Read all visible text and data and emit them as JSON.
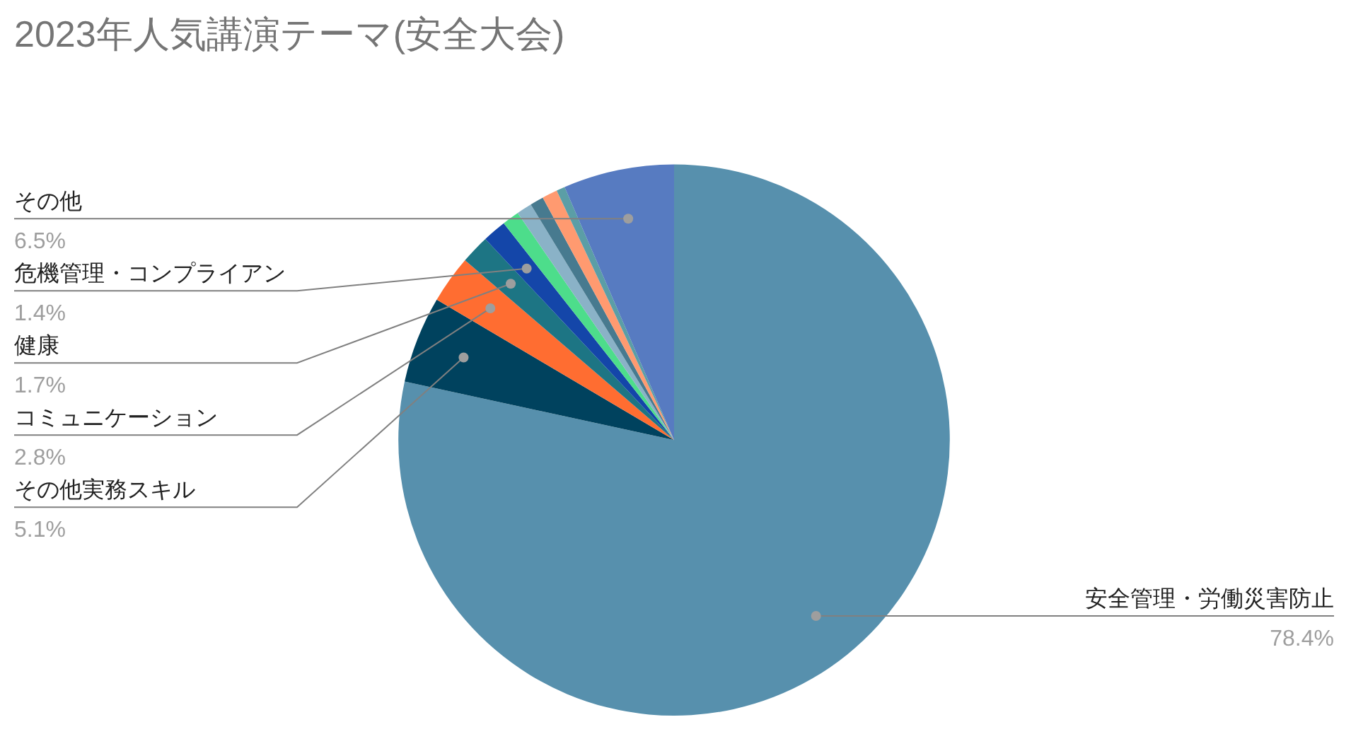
{
  "chart_data": {
    "type": "pie",
    "title": "2023年人気講演テーマ(安全大会)",
    "categories": [
      "安全管理・労働災害防止",
      "その他実務スキル",
      "コミュニケーション",
      "健康",
      "危機管理・コンプライアン",
      null,
      null,
      null,
      null,
      null,
      "その他"
    ],
    "values": [
      78.4,
      5.1,
      2.8,
      1.7,
      1.4,
      1.0,
      0.9,
      0.8,
      0.9,
      0.5,
      6.5
    ],
    "colors": [
      "#5790ad",
      "#00425e",
      "#ff6d31",
      "#1d7584",
      "#1446a9",
      "#4ddd8b",
      "#8ab2c7",
      "#477a8f",
      "#ff9a70",
      "#5b9ea6",
      "#577bc1"
    ],
    "value_labels": [
      "78.4%",
      "5.1%",
      "2.8%",
      "1.7%",
      "1.4%",
      null,
      null,
      null,
      null,
      null,
      "6.5%"
    ]
  }
}
